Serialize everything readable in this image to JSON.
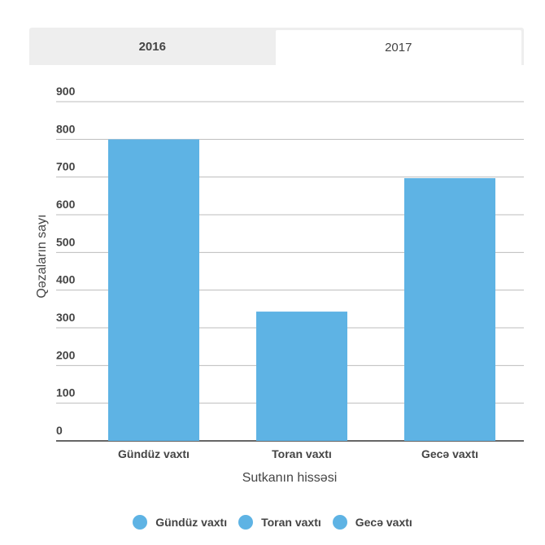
{
  "tabs": [
    {
      "label": "2016",
      "active": false
    },
    {
      "label": "2017",
      "active": true
    }
  ],
  "chart_data": {
    "type": "bar",
    "categories": [
      "Gündüz vaxtı",
      "Toran vaxtı",
      "Gecə vaxtı"
    ],
    "values": [
      800,
      343,
      697
    ],
    "title": "",
    "xlabel": "Sutkanın hissəsi",
    "ylabel": "Qəzaların sayı",
    "ylim": [
      0,
      900
    ],
    "yticks": [
      0,
      100,
      200,
      300,
      400,
      500,
      600,
      700,
      800,
      900
    ],
    "grid": true,
    "legend_placement": "bottom",
    "legend": [
      "Gündüz vaxtı",
      "Toran vaxtı",
      "Gecə vaxtı"
    ],
    "bar_color": "#5eb3e4"
  }
}
